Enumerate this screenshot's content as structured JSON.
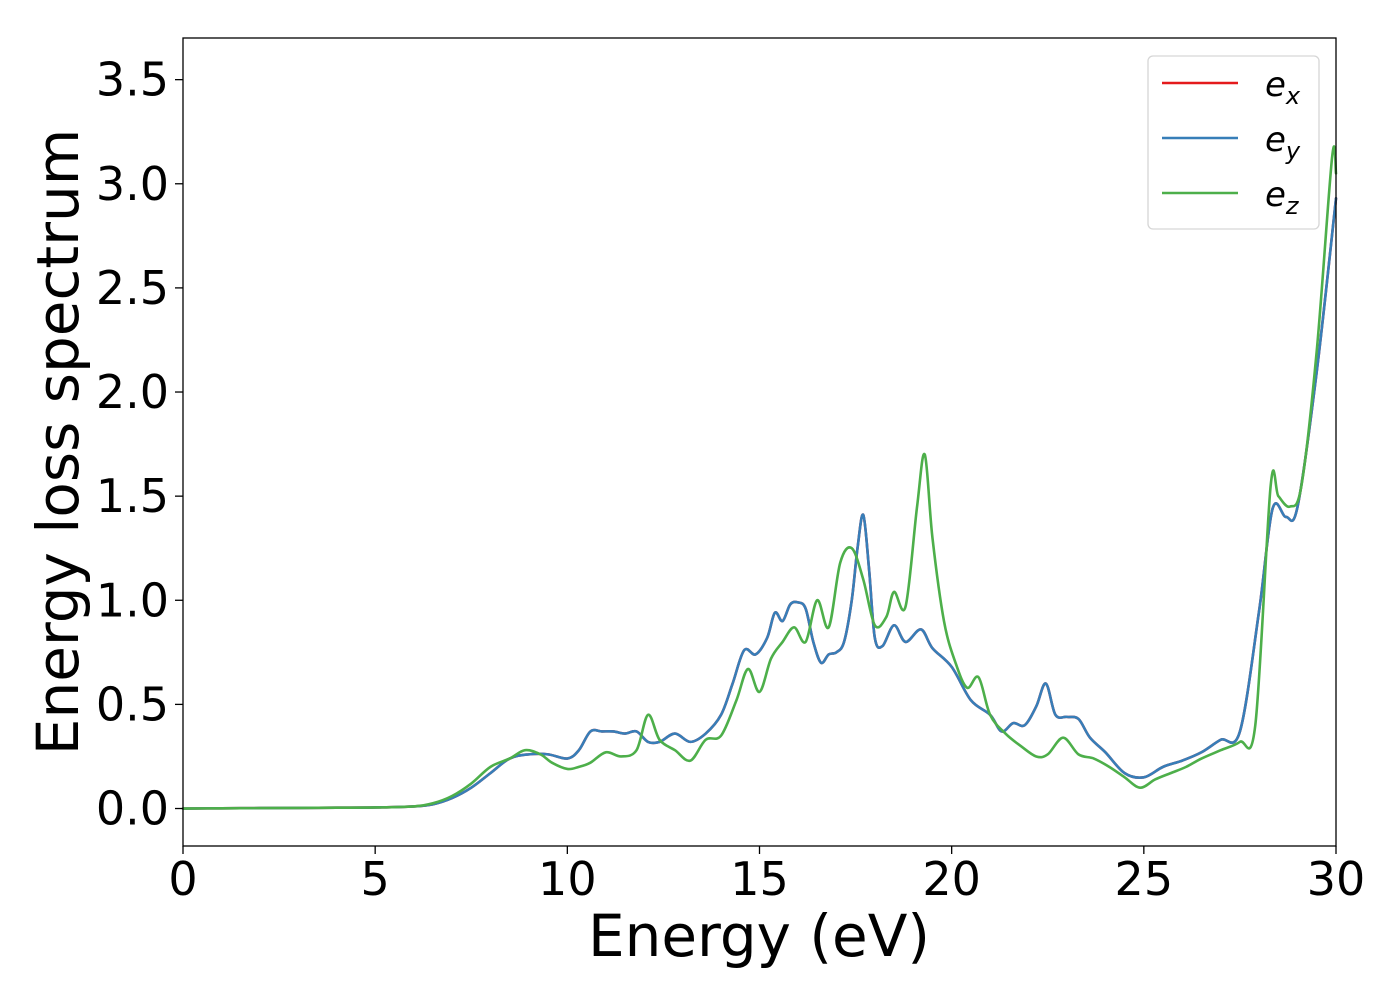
{
  "chart_data": {
    "type": "line",
    "title": "",
    "xlabel": "Energy (eV)",
    "ylabel": "Energy loss spectrum",
    "xlim": [
      0,
      30
    ],
    "ylim": [
      -0.18,
      3.7
    ],
    "xticks": [
      "0",
      "5",
      "10",
      "15",
      "20",
      "25",
      "30"
    ],
    "yticks": [
      "0.0",
      "0.5",
      "1.0",
      "1.5",
      "2.0",
      "2.5",
      "3.0",
      "3.5"
    ],
    "grid": false,
    "legend_position": "top-right",
    "series": [
      {
        "name": "e_x",
        "legend_base": "e",
        "legend_sub": "x",
        "color": "#e41a1c",
        "x": [
          0,
          1,
          2,
          3,
          4,
          5,
          6,
          6.5,
          7,
          7.5,
          8,
          8.5,
          9,
          9.5,
          10,
          10.3,
          10.6,
          10.9,
          11.2,
          11.5,
          11.8,
          12.1,
          12.4,
          12.8,
          13.2,
          13.6,
          14,
          14.3,
          14.6,
          14.9,
          15.2,
          15.4,
          15.6,
          15.8,
          16,
          16.2,
          16.4,
          16.6,
          16.8,
          17,
          17.2,
          17.4,
          17.55,
          17.7,
          17.85,
          18,
          18.2,
          18.5,
          18.8,
          19.2,
          19.5,
          20,
          20.5,
          21,
          21.3,
          21.6,
          21.9,
          22.2,
          22.45,
          22.7,
          23,
          23.3,
          23.6,
          24,
          24.5,
          25,
          25.5,
          26,
          26.5,
          27,
          27.5,
          28,
          28.35,
          28.7,
          29,
          29.5,
          30
        ],
        "y": [
          0,
          0.001,
          0.002,
          0.003,
          0.004,
          0.005,
          0.01,
          0.02,
          0.05,
          0.1,
          0.17,
          0.24,
          0.26,
          0.26,
          0.24,
          0.28,
          0.37,
          0.37,
          0.37,
          0.36,
          0.37,
          0.32,
          0.32,
          0.36,
          0.32,
          0.36,
          0.45,
          0.6,
          0.76,
          0.74,
          0.82,
          0.94,
          0.9,
          0.98,
          0.99,
          0.96,
          0.8,
          0.7,
          0.74,
          0.75,
          0.8,
          1.0,
          1.25,
          1.41,
          1.15,
          0.82,
          0.78,
          0.88,
          0.8,
          0.86,
          0.77,
          0.68,
          0.52,
          0.45,
          0.37,
          0.41,
          0.4,
          0.49,
          0.6,
          0.45,
          0.44,
          0.43,
          0.34,
          0.27,
          0.17,
          0.15,
          0.2,
          0.23,
          0.27,
          0.33,
          0.37,
          0.95,
          1.44,
          1.4,
          1.45,
          2.1,
          2.93
        ]
      },
      {
        "name": "e_y",
        "legend_base": "e",
        "legend_sub": "y",
        "color": "#377eb8",
        "x": [
          0,
          1,
          2,
          3,
          4,
          5,
          6,
          6.5,
          7,
          7.5,
          8,
          8.5,
          9,
          9.5,
          10,
          10.3,
          10.6,
          10.9,
          11.2,
          11.5,
          11.8,
          12.1,
          12.4,
          12.8,
          13.2,
          13.6,
          14,
          14.3,
          14.6,
          14.9,
          15.2,
          15.4,
          15.6,
          15.8,
          16,
          16.2,
          16.4,
          16.6,
          16.8,
          17,
          17.2,
          17.4,
          17.55,
          17.7,
          17.85,
          18,
          18.2,
          18.5,
          18.8,
          19.2,
          19.5,
          20,
          20.5,
          21,
          21.3,
          21.6,
          21.9,
          22.2,
          22.45,
          22.7,
          23,
          23.3,
          23.6,
          24,
          24.5,
          25,
          25.5,
          26,
          26.5,
          27,
          27.5,
          28,
          28.35,
          28.7,
          29,
          29.5,
          30
        ],
        "y": [
          0,
          0.001,
          0.002,
          0.003,
          0.004,
          0.005,
          0.01,
          0.02,
          0.05,
          0.1,
          0.17,
          0.24,
          0.26,
          0.26,
          0.24,
          0.28,
          0.37,
          0.37,
          0.37,
          0.36,
          0.37,
          0.32,
          0.32,
          0.36,
          0.32,
          0.36,
          0.45,
          0.6,
          0.76,
          0.74,
          0.82,
          0.94,
          0.9,
          0.98,
          0.99,
          0.96,
          0.8,
          0.7,
          0.74,
          0.75,
          0.8,
          1.0,
          1.25,
          1.41,
          1.15,
          0.82,
          0.78,
          0.88,
          0.8,
          0.86,
          0.77,
          0.68,
          0.52,
          0.45,
          0.37,
          0.41,
          0.4,
          0.49,
          0.6,
          0.45,
          0.44,
          0.43,
          0.34,
          0.27,
          0.17,
          0.15,
          0.2,
          0.23,
          0.27,
          0.33,
          0.37,
          0.95,
          1.44,
          1.4,
          1.45,
          2.1,
          2.93
        ]
      },
      {
        "name": "e_z",
        "legend_base": "e",
        "legend_sub": "z",
        "color": "#4daf4a",
        "x": [
          0,
          1,
          2,
          3,
          4,
          5,
          6,
          6.5,
          7,
          7.5,
          8,
          8.5,
          8.9,
          9.3,
          9.6,
          10,
          10.3,
          10.6,
          11,
          11.4,
          11.8,
          12.1,
          12.4,
          12.8,
          13.2,
          13.6,
          14,
          14.4,
          14.7,
          15,
          15.3,
          15.6,
          15.9,
          16.2,
          16.5,
          16.8,
          17.1,
          17.4,
          17.7,
          18,
          18.3,
          18.5,
          18.8,
          19.1,
          19.3,
          19.5,
          19.8,
          20.1,
          20.4,
          20.7,
          21,
          21.4,
          21.8,
          22.2,
          22.5,
          22.9,
          23.3,
          23.7,
          24.1,
          24.5,
          24.9,
          25.3,
          25.7,
          26.1,
          26.5,
          27,
          27.5,
          27.9,
          28.3,
          28.5,
          28.8,
          29.1,
          29.5,
          29.9,
          30
        ],
        "y": [
          0,
          0.001,
          0.002,
          0.003,
          0.004,
          0.005,
          0.01,
          0.025,
          0.06,
          0.12,
          0.2,
          0.24,
          0.28,
          0.26,
          0.22,
          0.19,
          0.2,
          0.22,
          0.27,
          0.25,
          0.28,
          0.45,
          0.33,
          0.28,
          0.23,
          0.33,
          0.35,
          0.52,
          0.67,
          0.56,
          0.72,
          0.8,
          0.87,
          0.8,
          1.0,
          0.87,
          1.18,
          1.25,
          1.1,
          0.88,
          0.92,
          1.04,
          0.97,
          1.45,
          1.7,
          1.3,
          0.9,
          0.7,
          0.58,
          0.63,
          0.45,
          0.36,
          0.3,
          0.25,
          0.26,
          0.34,
          0.26,
          0.24,
          0.2,
          0.15,
          0.1,
          0.14,
          0.17,
          0.2,
          0.24,
          0.28,
          0.32,
          0.4,
          1.55,
          1.5,
          1.45,
          1.55,
          2.2,
          3.13,
          3.05
        ]
      }
    ]
  }
}
